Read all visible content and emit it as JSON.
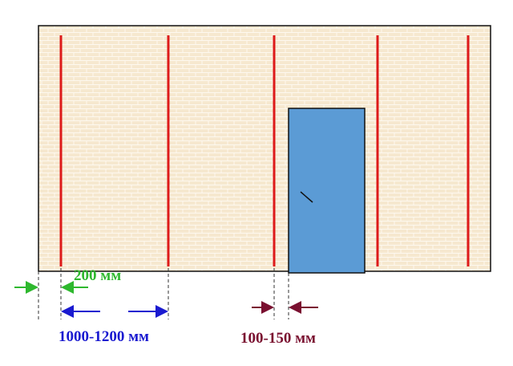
{
  "labels": {
    "edge_offset": "200 мм",
    "spacing": "1000-1200 мм",
    "door_offset": "100-150 мм"
  }
}
